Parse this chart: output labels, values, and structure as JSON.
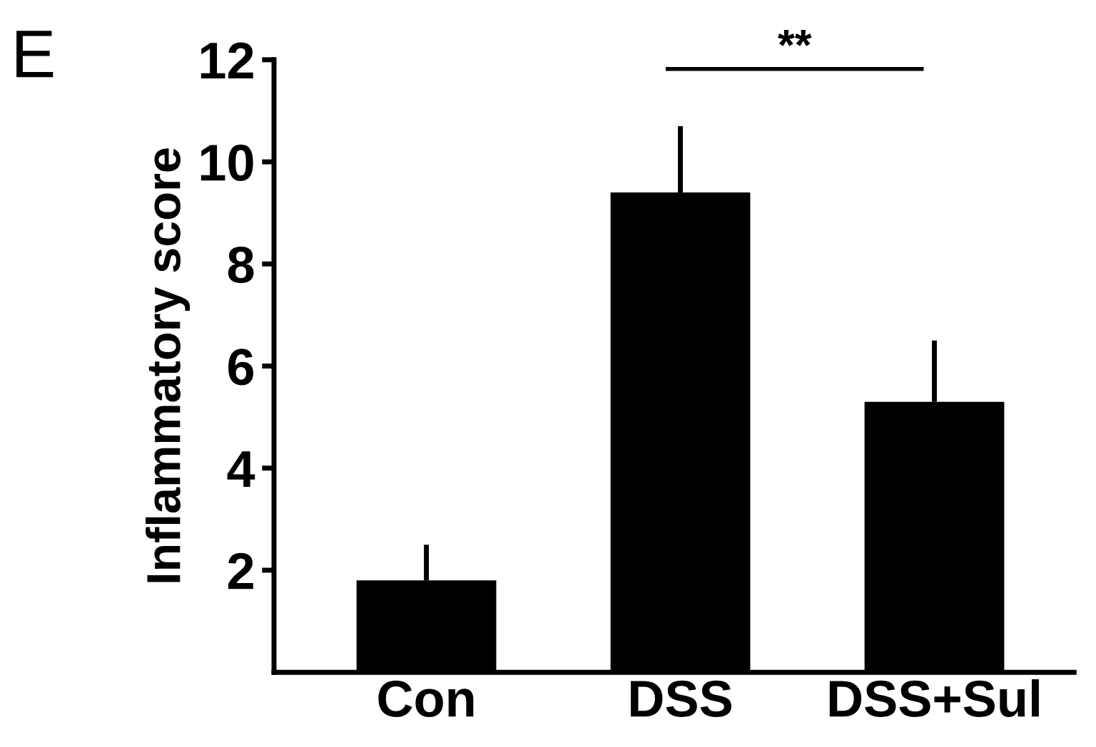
{
  "chart_data": {
    "type": "bar",
    "ylabel": "Inflammatory score",
    "categories": [
      "Con",
      "DSS",
      "DSS+Sul"
    ],
    "values": [
      1.8,
      9.4,
      5.3
    ],
    "color": "#000000",
    "errors": [
      [
        1.8,
        2.5
      ],
      [
        9.4,
        10.7
      ],
      [
        5.3,
        6.5
      ]
    ],
    "ylim": [
      0,
      12
    ],
    "yticks": [
      2,
      4,
      6,
      8,
      10,
      12
    ],
    "grid": false,
    "annotations": [
      "E",
      "**"
    ]
  }
}
